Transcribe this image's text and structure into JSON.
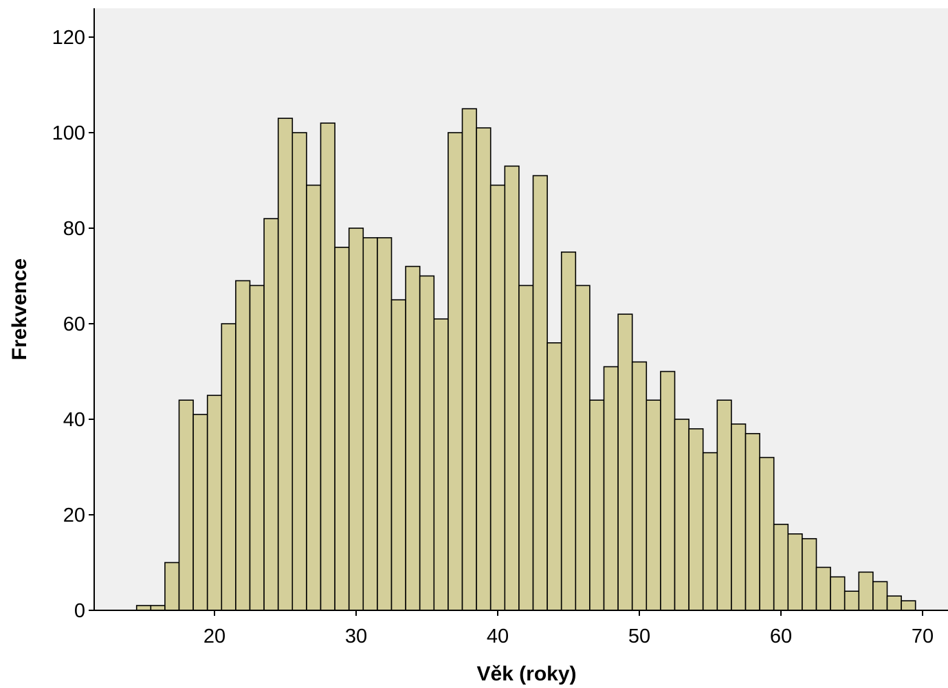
{
  "chart_data": {
    "type": "bar",
    "subtype": "histogram",
    "xlabel": "Věk (roky)",
    "ylabel": "Frekvence",
    "xlim": [
      12,
      71
    ],
    "ylim": [
      0,
      125
    ],
    "xticks": [
      20,
      30,
      40,
      50,
      60,
      70
    ],
    "yticks": [
      0,
      20,
      40,
      60,
      80,
      100,
      120
    ],
    "bin_width": 1,
    "x": [
      15,
      16,
      17,
      18,
      19,
      20,
      21,
      22,
      23,
      24,
      25,
      26,
      27,
      28,
      29,
      30,
      31,
      32,
      33,
      34,
      35,
      36,
      37,
      38,
      39,
      40,
      41,
      42,
      43,
      44,
      45,
      46,
      47,
      48,
      49,
      50,
      51,
      52,
      53,
      54,
      55,
      56,
      57,
      58,
      59,
      60,
      61,
      62,
      63,
      64,
      65,
      66,
      67,
      68,
      69
    ],
    "values": [
      1,
      1,
      10,
      44,
      41,
      45,
      60,
      69,
      68,
      82,
      103,
      100,
      89,
      102,
      76,
      80,
      78,
      78,
      65,
      72,
      70,
      61,
      100,
      105,
      101,
      89,
      93,
      68,
      91,
      56,
      75,
      68,
      44,
      51,
      62,
      52,
      44,
      50,
      40,
      38,
      33,
      44,
      39,
      37,
      32,
      18,
      16,
      15,
      9,
      7,
      4,
      8,
      6,
      3,
      2
    ],
    "colors": {
      "bar_fill": "#d4cf9a",
      "bar_stroke": "#000000",
      "plot_bg": "#f0f0f0",
      "page_bg": "#ffffff"
    },
    "grid": false,
    "legend": "none"
  }
}
